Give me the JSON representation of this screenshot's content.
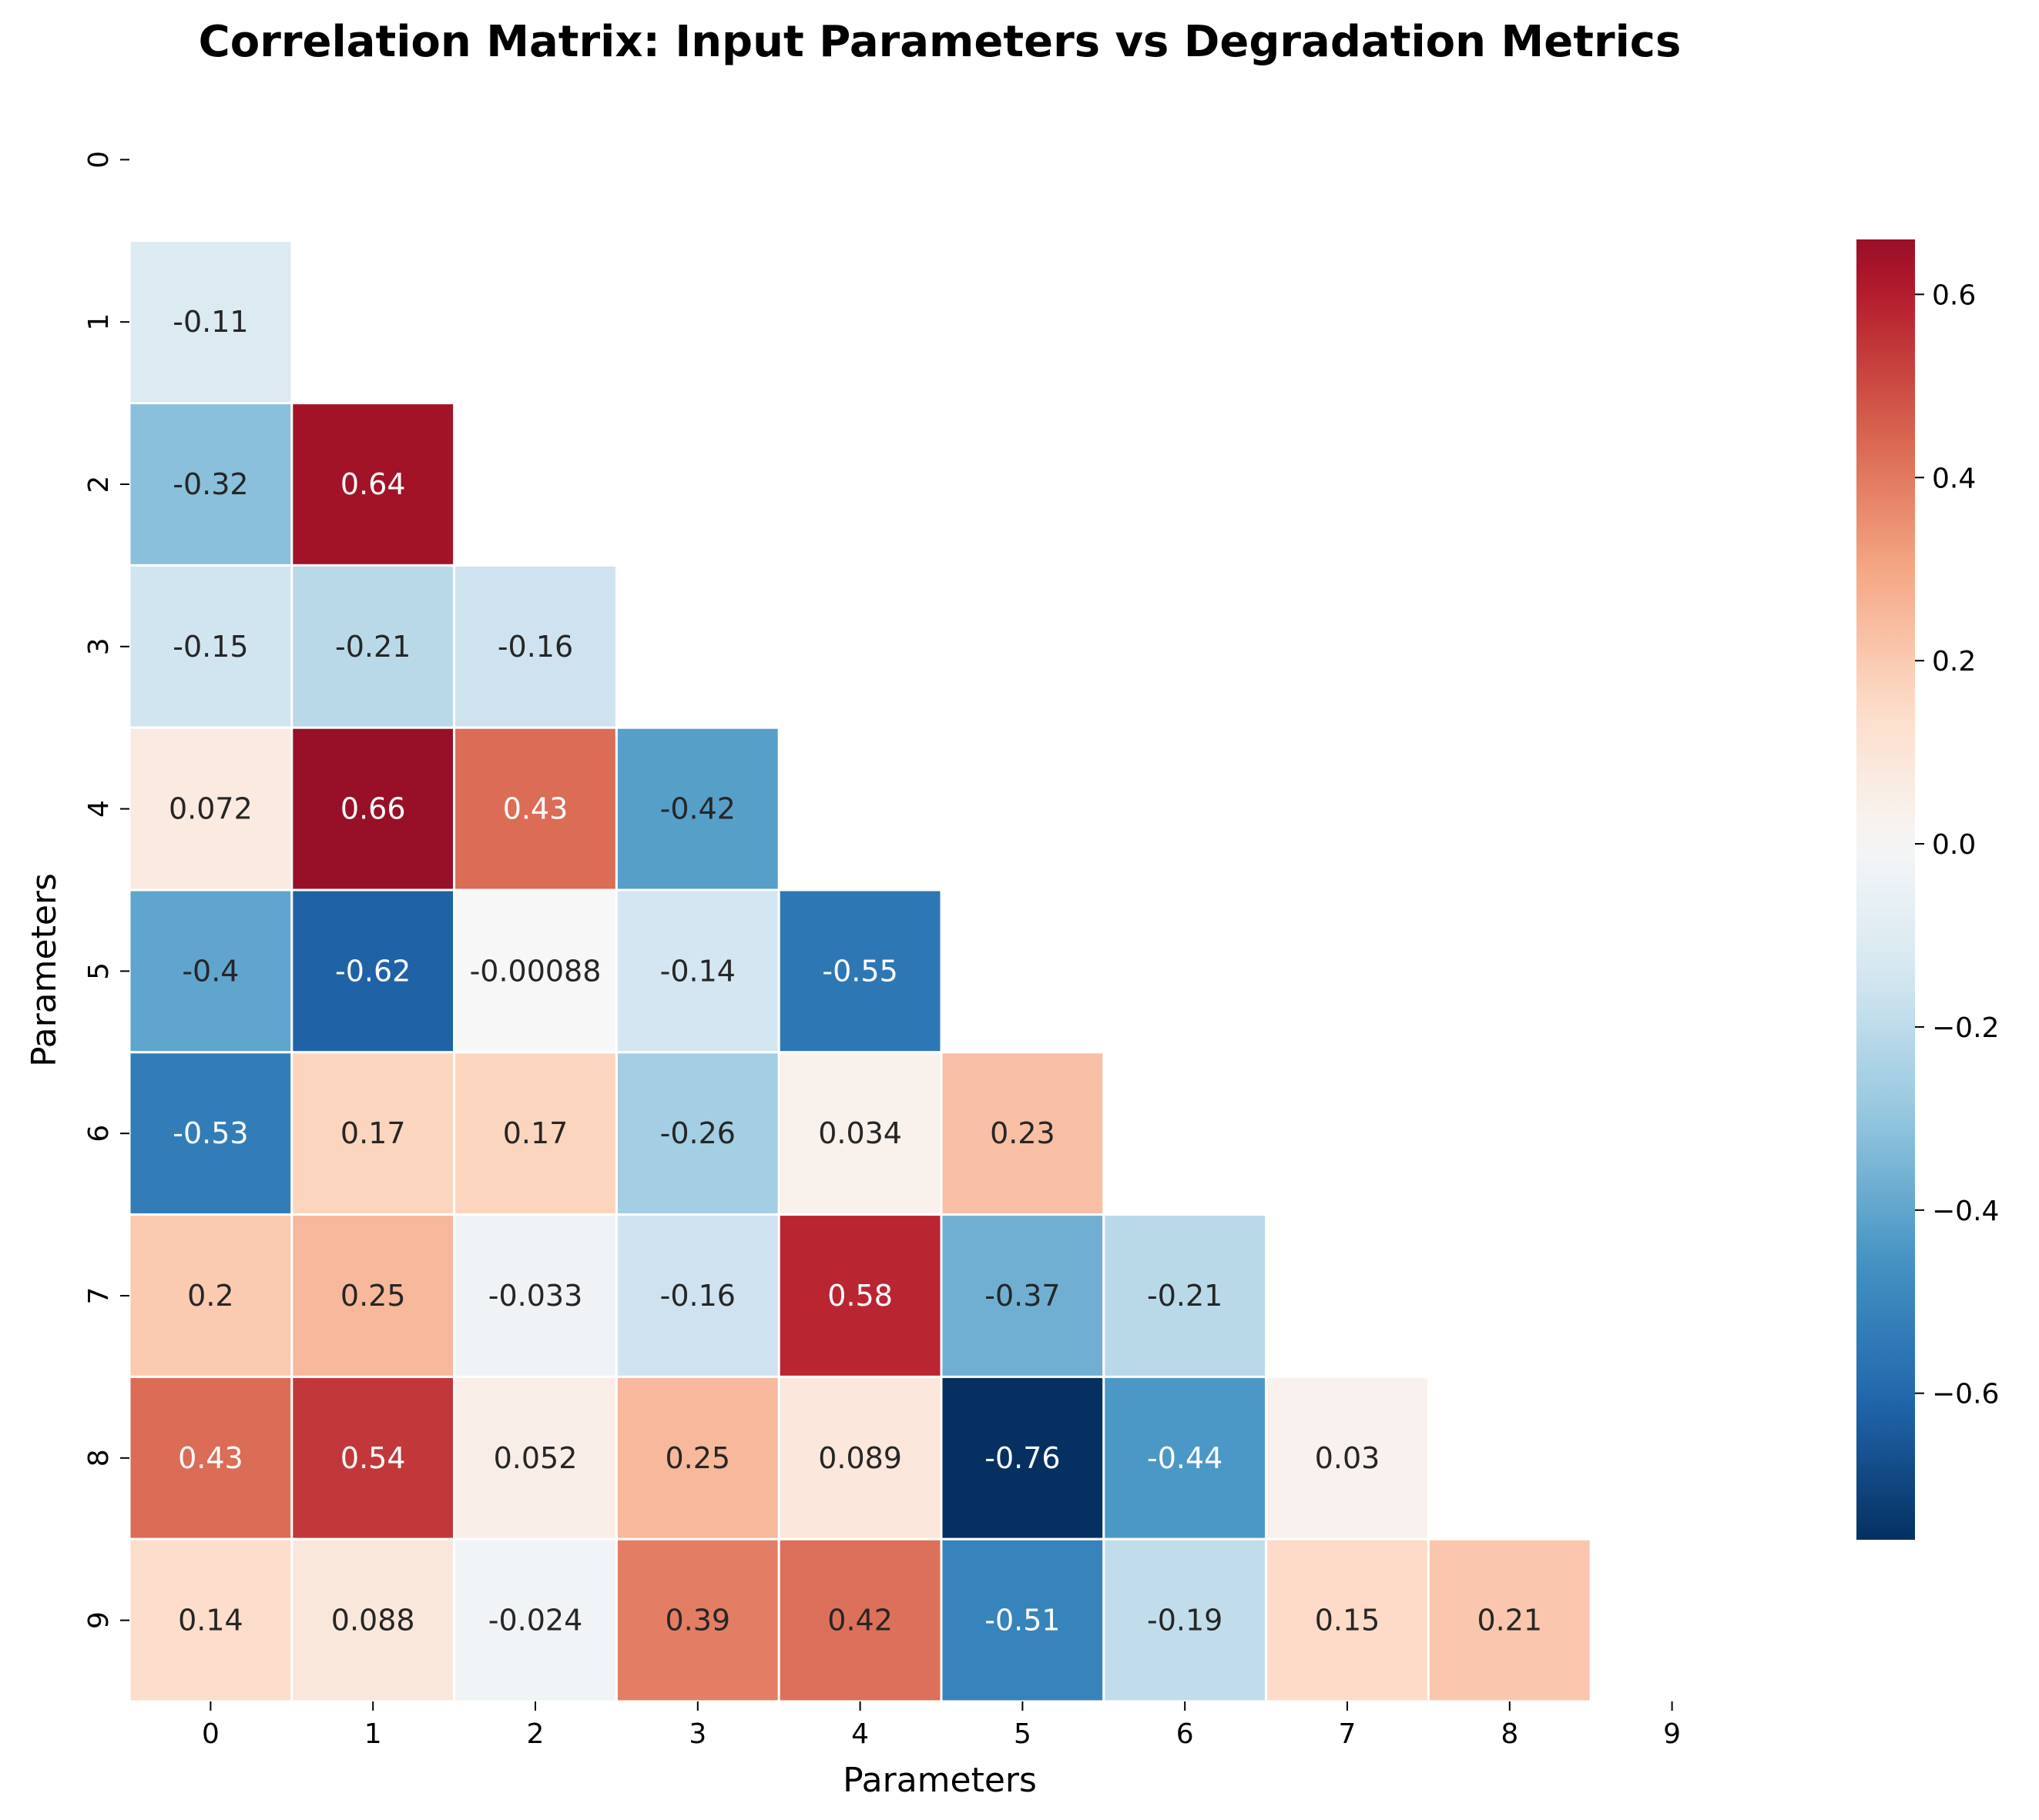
{
  "chart_data": {
    "type": "heatmap",
    "title": "Correlation Matrix: Input Parameters vs Degradation Metrics",
    "xlabel": "Parameters",
    "ylabel": "Parameters",
    "x_ticks": [
      "0",
      "1",
      "2",
      "3",
      "4",
      "5",
      "6",
      "7",
      "8",
      "9"
    ],
    "y_ticks": [
      "0",
      "1",
      "2",
      "3",
      "4",
      "5",
      "6",
      "7",
      "8",
      "9"
    ],
    "mask": "upper-triangle-including-diagonal",
    "colormap": "RdBu_r",
    "vmin": -0.76,
    "vmax": 0.66,
    "center": 0.0,
    "colorbar_ticks": [
      "0.6",
      "0.4",
      "0.2",
      "0.0",
      "−0.2",
      "−0.4",
      "−0.6"
    ],
    "colorbar_tick_values": [
      0.6,
      0.4,
      0.2,
      0.0,
      -0.2,
      -0.4,
      -0.6
    ],
    "cells": [
      {
        "row": 1,
        "col": 0,
        "value": -0.11,
        "label": "-0.11"
      },
      {
        "row": 2,
        "col": 0,
        "value": -0.32,
        "label": "-0.32"
      },
      {
        "row": 2,
        "col": 1,
        "value": 0.64,
        "label": "0.64"
      },
      {
        "row": 3,
        "col": 0,
        "value": -0.15,
        "label": "-0.15"
      },
      {
        "row": 3,
        "col": 1,
        "value": -0.21,
        "label": "-0.21"
      },
      {
        "row": 3,
        "col": 2,
        "value": -0.16,
        "label": "-0.16"
      },
      {
        "row": 4,
        "col": 0,
        "value": 0.072,
        "label": "0.072"
      },
      {
        "row": 4,
        "col": 1,
        "value": 0.66,
        "label": "0.66"
      },
      {
        "row": 4,
        "col": 2,
        "value": 0.43,
        "label": "0.43"
      },
      {
        "row": 4,
        "col": 3,
        "value": -0.42,
        "label": "-0.42"
      },
      {
        "row": 5,
        "col": 0,
        "value": -0.4,
        "label": "-0.4"
      },
      {
        "row": 5,
        "col": 1,
        "value": -0.62,
        "label": "-0.62"
      },
      {
        "row": 5,
        "col": 2,
        "value": -0.00088,
        "label": "-0.00088"
      },
      {
        "row": 5,
        "col": 3,
        "value": -0.14,
        "label": "-0.14"
      },
      {
        "row": 5,
        "col": 4,
        "value": -0.55,
        "label": "-0.55"
      },
      {
        "row": 6,
        "col": 0,
        "value": -0.53,
        "label": "-0.53"
      },
      {
        "row": 6,
        "col": 1,
        "value": 0.17,
        "label": "0.17"
      },
      {
        "row": 6,
        "col": 2,
        "value": 0.17,
        "label": "0.17"
      },
      {
        "row": 6,
        "col": 3,
        "value": -0.26,
        "label": "-0.26"
      },
      {
        "row": 6,
        "col": 4,
        "value": 0.034,
        "label": "0.034"
      },
      {
        "row": 6,
        "col": 5,
        "value": 0.23,
        "label": "0.23"
      },
      {
        "row": 7,
        "col": 0,
        "value": 0.2,
        "label": "0.2"
      },
      {
        "row": 7,
        "col": 1,
        "value": 0.25,
        "label": "0.25"
      },
      {
        "row": 7,
        "col": 2,
        "value": -0.033,
        "label": "-0.033"
      },
      {
        "row": 7,
        "col": 3,
        "value": -0.16,
        "label": "-0.16"
      },
      {
        "row": 7,
        "col": 4,
        "value": 0.58,
        "label": "0.58"
      },
      {
        "row": 7,
        "col": 5,
        "value": -0.37,
        "label": "-0.37"
      },
      {
        "row": 7,
        "col": 6,
        "value": -0.21,
        "label": "-0.21"
      },
      {
        "row": 8,
        "col": 0,
        "value": 0.43,
        "label": "0.43"
      },
      {
        "row": 8,
        "col": 1,
        "value": 0.54,
        "label": "0.54"
      },
      {
        "row": 8,
        "col": 2,
        "value": 0.052,
        "label": "0.052"
      },
      {
        "row": 8,
        "col": 3,
        "value": 0.25,
        "label": "0.25"
      },
      {
        "row": 8,
        "col": 4,
        "value": 0.089,
        "label": "0.089"
      },
      {
        "row": 8,
        "col": 5,
        "value": -0.76,
        "label": "-0.76"
      },
      {
        "row": 8,
        "col": 6,
        "value": -0.44,
        "label": "-0.44"
      },
      {
        "row": 8,
        "col": 7,
        "value": 0.03,
        "label": "0.03"
      },
      {
        "row": 9,
        "col": 0,
        "value": 0.14,
        "label": "0.14"
      },
      {
        "row": 9,
        "col": 1,
        "value": 0.088,
        "label": "0.088"
      },
      {
        "row": 9,
        "col": 2,
        "value": -0.024,
        "label": "-0.024"
      },
      {
        "row": 9,
        "col": 3,
        "value": 0.39,
        "label": "0.39"
      },
      {
        "row": 9,
        "col": 4,
        "value": 0.42,
        "label": "0.42"
      },
      {
        "row": 9,
        "col": 5,
        "value": -0.51,
        "label": "-0.51"
      },
      {
        "row": 9,
        "col": 6,
        "value": -0.19,
        "label": "-0.19"
      },
      {
        "row": 9,
        "col": 7,
        "value": 0.15,
        "label": "0.15"
      },
      {
        "row": 9,
        "col": 8,
        "value": 0.21,
        "label": "0.21"
      }
    ]
  }
}
